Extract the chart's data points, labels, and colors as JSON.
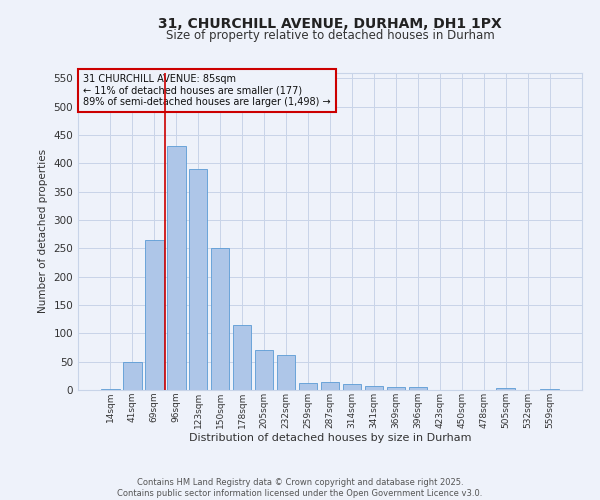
{
  "title_line1": "31, CHURCHILL AVENUE, DURHAM, DH1 1PX",
  "title_line2": "Size of property relative to detached houses in Durham",
  "xlabel": "Distribution of detached houses by size in Durham",
  "ylabel": "Number of detached properties",
  "categories": [
    "14sqm",
    "41sqm",
    "69sqm",
    "96sqm",
    "123sqm",
    "150sqm",
    "178sqm",
    "205sqm",
    "232sqm",
    "259sqm",
    "287sqm",
    "314sqm",
    "341sqm",
    "369sqm",
    "396sqm",
    "423sqm",
    "450sqm",
    "478sqm",
    "505sqm",
    "532sqm",
    "559sqm"
  ],
  "values": [
    2,
    50,
    265,
    430,
    390,
    250,
    115,
    70,
    62,
    13,
    14,
    10,
    7,
    6,
    5,
    0,
    0,
    0,
    3,
    0,
    2
  ],
  "bar_color": "#aec6e8",
  "bar_edge_color": "#5b9bd5",
  "grid_color": "#c8d4e8",
  "vline_color": "#cc0000",
  "vline_x_index": 2.5,
  "annotation_title": "31 CHURCHILL AVENUE: 85sqm",
  "annotation_line1": "← 11% of detached houses are smaller (177)",
  "annotation_line2": "89% of semi-detached houses are larger (1,498) →",
  "annotation_box_color": "#cc0000",
  "ylim": [
    0,
    560
  ],
  "yticks": [
    0,
    50,
    100,
    150,
    200,
    250,
    300,
    350,
    400,
    450,
    500,
    550
  ],
  "footer_line1": "Contains HM Land Registry data © Crown copyright and database right 2025.",
  "footer_line2": "Contains public sector information licensed under the Open Government Licence v3.0.",
  "bg_color": "#eef2fa"
}
